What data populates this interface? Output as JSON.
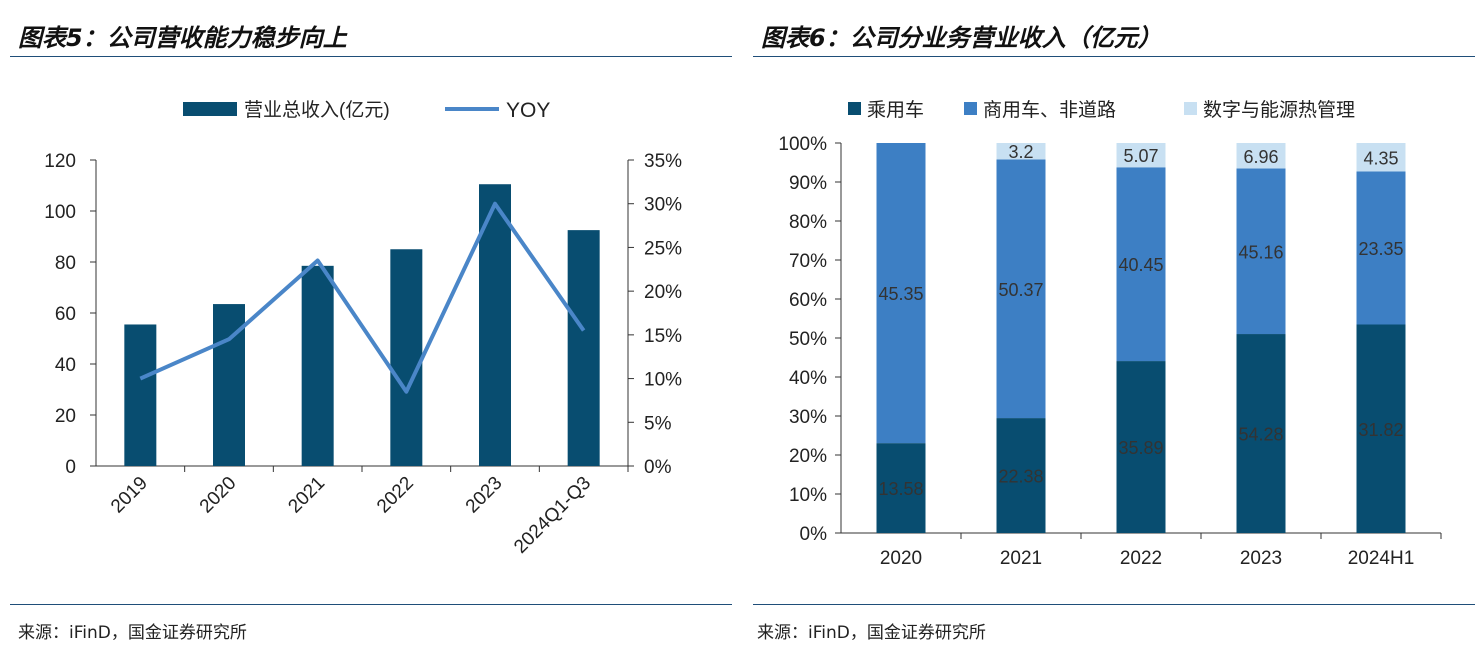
{
  "left": {
    "title": "图表5：公司营收能力稳步向上",
    "source": "来源：iFinD，国金证券研究所"
  },
  "right": {
    "title": "图表6：公司分业务营业收入（亿元）",
    "source": "来源：iFinD，国金证券研究所"
  },
  "colors": {
    "dark": "#084d70",
    "mid": "#3d7fc4",
    "light": "#c8e0f2",
    "line": "#4a86c8",
    "rule": "#1f4e79"
  },
  "chart_data": [
    {
      "type": "bar",
      "categories": [
        "2019",
        "2020",
        "2021",
        "2022",
        "2023",
        "2024Q1-Q3"
      ],
      "series": [
        {
          "name": "营业总收入(亿元)",
          "type": "bar",
          "axis": "left",
          "values": [
            55.5,
            63.5,
            78.5,
            85,
            110.5,
            92.5
          ]
        },
        {
          "name": "YOY",
          "type": "line",
          "axis": "right",
          "values": [
            10,
            14.5,
            23.5,
            8.5,
            30,
            15.5
          ]
        }
      ],
      "y_left": {
        "ylim": [
          0,
          120
        ],
        "ticks": [
          "0",
          "20",
          "40",
          "60",
          "80",
          "100",
          "120"
        ]
      },
      "y_right": {
        "ylim": [
          0,
          35
        ],
        "ticks": [
          "0%",
          "5%",
          "10%",
          "15%",
          "20%",
          "25%",
          "30%",
          "35%"
        ]
      },
      "legend": "top-center",
      "grid": false
    },
    {
      "type": "bar",
      "stacked_percent": true,
      "categories": [
        "2020",
        "2021",
        "2022",
        "2023",
        "2024H1"
      ],
      "series": [
        {
          "name": "乘用车",
          "values": [
            13.58,
            22.38,
            35.89,
            54.28,
            31.82
          ],
          "labels": [
            "13.58",
            "22.38",
            "35.89",
            "54.28",
            "31.82"
          ]
        },
        {
          "name": "商用车、非道路",
          "values": [
            45.35,
            50.37,
            40.45,
            45.16,
            23.35
          ],
          "labels": [
            "45.35",
            "50.37",
            "40.45",
            "45.16",
            "23.35"
          ]
        },
        {
          "name": "数字与能源热管理",
          "values": [
            0,
            3.2,
            5.07,
            6.96,
            4.35
          ],
          "labels": [
            "",
            "3.2",
            "5.07",
            "6.96",
            "4.35"
          ]
        }
      ],
      "y": {
        "ylim": [
          0,
          100
        ],
        "ticks": [
          "0%",
          "10%",
          "20%",
          "30%",
          "40%",
          "50%",
          "60%",
          "70%",
          "80%",
          "90%",
          "100%"
        ]
      },
      "legend": "top",
      "grid": false
    }
  ]
}
